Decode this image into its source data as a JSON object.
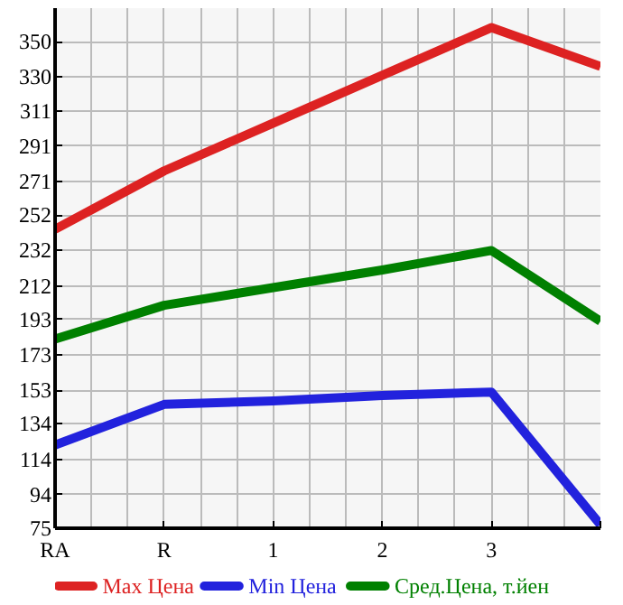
{
  "chart_data": {
    "type": "line",
    "categories": [
      "RA",
      "R",
      "1",
      "2",
      "3",
      null
    ],
    "series": [
      {
        "name": "Max Цена",
        "color": "#dd2222",
        "values": [
          244,
          277,
          304,
          331,
          358,
          336
        ]
      },
      {
        "name": "Min Цена",
        "color": "#2222dd",
        "values": [
          122,
          145,
          147,
          150,
          152,
          77
        ]
      },
      {
        "name": "Сред.Цена, т.йен",
        "color": "#008000",
        "values": [
          182,
          201,
          211,
          221,
          232,
          192
        ]
      }
    ],
    "ylim": [
      75,
      369
    ],
    "yticks": [
      75,
      94,
      114,
      134,
      153,
      173,
      193,
      212,
      232,
      252,
      271,
      291,
      311,
      330,
      350
    ],
    "grid": true,
    "legend": "bottom",
    "marker": "none",
    "line_style": "solid"
  }
}
